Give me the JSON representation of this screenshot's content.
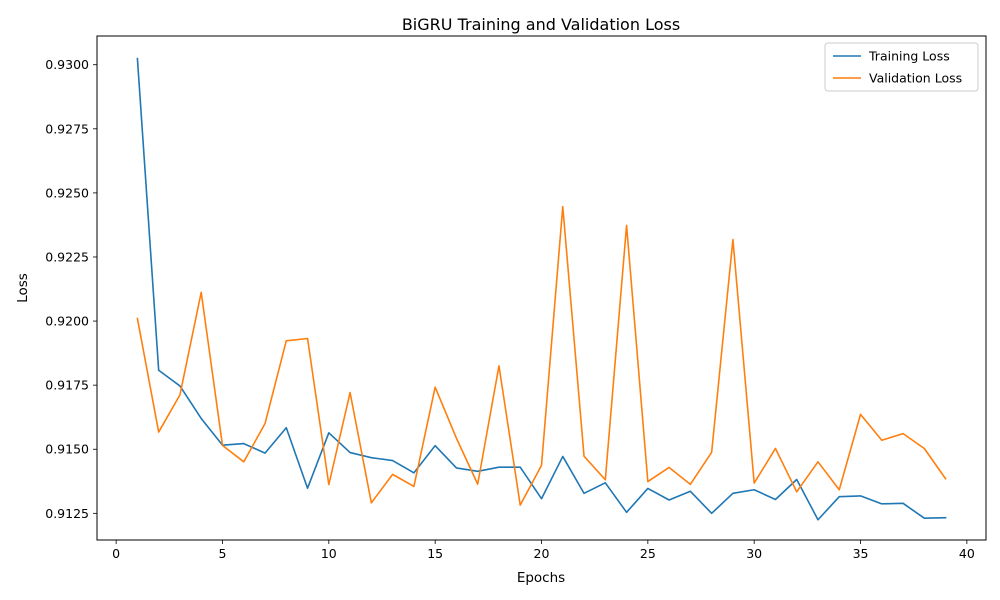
{
  "chart_data": {
    "type": "line",
    "title": "BiGRU Training and Validation Loss",
    "xlabel": "Epochs",
    "ylabel": "Loss",
    "xlim": [
      -0.9,
      40.9
    ],
    "ylim": [
      0.91146,
      0.93112
    ],
    "xticks": [
      0,
      5,
      10,
      15,
      20,
      25,
      30,
      35,
      40
    ],
    "yticks": [
      0.9125,
      0.915,
      0.9175,
      0.92,
      0.9225,
      0.925,
      0.9275,
      0.93
    ],
    "ytick_labels": [
      "0.9125",
      "0.9150",
      "0.9175",
      "0.9200",
      "0.9225",
      "0.9250",
      "0.9275",
      "0.9300"
    ],
    "grid": false,
    "legend_position": "top-right",
    "x": [
      1,
      2,
      3,
      4,
      5,
      6,
      7,
      8,
      9,
      10,
      11,
      12,
      13,
      14,
      15,
      16,
      17,
      18,
      19,
      20,
      21,
      22,
      23,
      24,
      25,
      26,
      27,
      28,
      29,
      30,
      31,
      32,
      33,
      34,
      35,
      36,
      37,
      38,
      39
    ],
    "series": [
      {
        "name": "Training Loss",
        "color": "#1f77b4",
        "values": [
          0.93024,
          0.91808,
          0.91747,
          0.9162,
          0.91516,
          0.91522,
          0.91485,
          0.91584,
          0.91348,
          0.91564,
          0.91487,
          0.91467,
          0.91456,
          0.91408,
          0.91514,
          0.91427,
          0.91414,
          0.9143,
          0.9143,
          0.91307,
          0.91472,
          0.91328,
          0.91369,
          0.91254,
          0.91347,
          0.91302,
          0.91336,
          0.9125,
          0.91328,
          0.91342,
          0.91304,
          0.91382,
          0.91225,
          0.91315,
          0.91318,
          0.91287,
          0.91289,
          0.91231,
          0.91233
        ]
      },
      {
        "name": "Validation Loss",
        "color": "#ff7f0e",
        "values": [
          0.9201,
          0.91567,
          0.91712,
          0.92112,
          0.91515,
          0.91451,
          0.916,
          0.91923,
          0.91932,
          0.91362,
          0.91721,
          0.91291,
          0.91402,
          0.91355,
          0.91742,
          0.91543,
          0.91364,
          0.91825,
          0.91282,
          0.91437,
          0.92446,
          0.91473,
          0.91381,
          0.92373,
          0.91374,
          0.91429,
          0.91363,
          0.91488,
          0.92318,
          0.91368,
          0.91503,
          0.91334,
          0.91451,
          0.91342,
          0.91636,
          0.91535,
          0.91561,
          0.91503,
          0.91385
        ]
      }
    ]
  }
}
